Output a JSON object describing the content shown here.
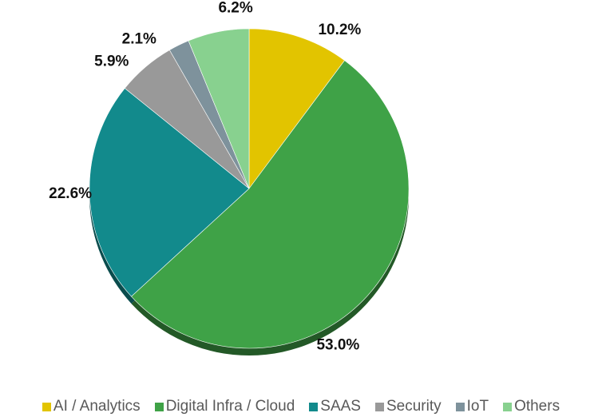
{
  "chart_data": {
    "type": "pie",
    "title": "",
    "slices": [
      {
        "label": "AI / Analytics",
        "value": 10.2,
        "display": "10.2%",
        "color": "#e2c400"
      },
      {
        "label": "Digital Infra / Cloud",
        "value": 53.0,
        "display": "53.0%",
        "color": "#3fa247"
      },
      {
        "label": "SAAS",
        "value": 22.6,
        "display": "22.6%",
        "color": "#128a8c"
      },
      {
        "label": "Security",
        "value": 5.9,
        "display": "5.9%",
        "color": "#999999"
      },
      {
        "label": "IoT",
        "value": 2.1,
        "display": "2.1%",
        "color": "#7e929c"
      },
      {
        "label": "Others",
        "value": 6.2,
        "display": "6.2%",
        "color": "#88d18f"
      }
    ],
    "legend_position": "bottom",
    "start_angle": "12 o'clock, clockwise"
  }
}
